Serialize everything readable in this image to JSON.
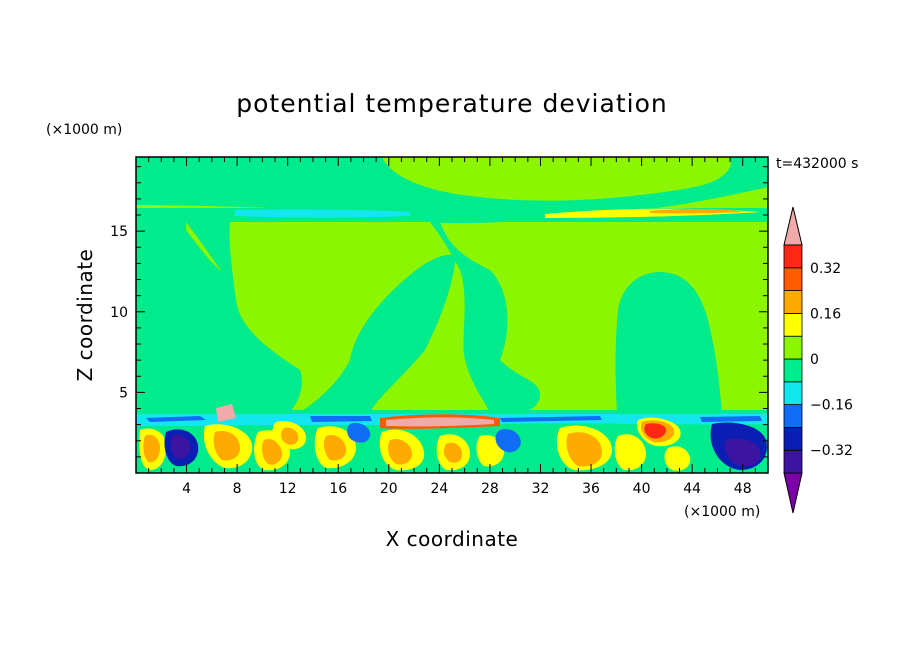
{
  "chart_data": {
    "type": "heatmap",
    "title": "potential temperature deviation",
    "time_label": "t=432000 s",
    "xlabel": "X coordinate",
    "ylabel": "Z coordinate",
    "x_unit": "(×1000 m)",
    "y_unit": "(×1000 m)",
    "xlim": [
      0,
      50
    ],
    "ylim": [
      0,
      19.6
    ],
    "x_ticks": [
      4,
      8,
      12,
      16,
      20,
      24,
      28,
      32,
      36,
      40,
      44,
      48
    ],
    "y_ticks": [
      5,
      10,
      15
    ],
    "colorbar": {
      "levels": [
        -0.4,
        -0.32,
        -0.24,
        -0.16,
        -0.08,
        0,
        0.08,
        0.16,
        0.24,
        0.32,
        0.4
      ],
      "labels": [
        "0.32",
        "0.16",
        "0",
        "-0.16",
        "-0.32"
      ],
      "label_values": [
        0.32,
        0.16,
        0,
        -0.16,
        -0.32
      ],
      "colors": [
        "#7b00a8",
        "#3c14a0",
        "#0a1eb4",
        "#0f6ef5",
        "#14e6f0",
        "#00eb8c",
        "#8cf500",
        "#ffff00",
        "#ffaa00",
        "#ff5a00",
        "#ff2814",
        "#f0aaaa"
      ]
    }
  }
}
